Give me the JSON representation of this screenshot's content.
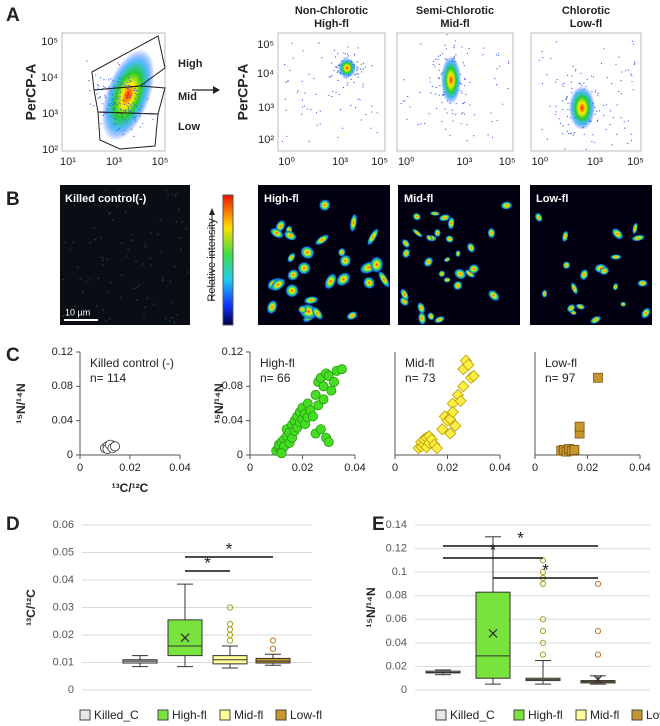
{
  "panel_labels": [
    "A",
    "B",
    "C",
    "D",
    "E"
  ],
  "flow": {
    "gate_plot": {
      "y_label": "PerCP-A",
      "yticks": [
        "10⁵",
        "10⁴",
        "10³",
        "10²"
      ],
      "xticks": [
        "10¹",
        "10³",
        "10⁵"
      ],
      "gates": [
        "High",
        "Mid",
        "Low"
      ]
    },
    "plots": [
      {
        "title": [
          "Non-Chlorotic",
          "High-fl"
        ]
      },
      {
        "title": [
          "Semi-Chlorotic",
          "Mid-fl"
        ]
      },
      {
        "title": [
          "Chlorotic",
          "Low-fl"
        ]
      }
    ],
    "y_label": "PerCP-A",
    "yticks": [
      "10⁵",
      "10⁴",
      "10³",
      "10²"
    ],
    "xticks": [
      "10⁰",
      "10³",
      "10⁵"
    ]
  },
  "images": {
    "labels": [
      "Killed control(-)",
      "High-fl",
      "Mid-fl",
      "Low-fl"
    ],
    "colorbar_label": "Relative intensity",
    "scale_bar": "10 µm"
  },
  "chart_data": [
    {
      "type": "scatter",
      "annotations": [
        "Killed control (-)",
        "n= 114"
      ],
      "marker": "circle",
      "color": "#ffffff",
      "edge_color": "#333333",
      "x": [
        0.01,
        0.011,
        0.012,
        0.013,
        0.011,
        0.012,
        0.013,
        0.014
      ],
      "values": [
        0.008,
        0.01,
        0.009,
        0.011,
        0.007,
        0.012,
        0.008,
        0.01
      ],
      "xlim": [
        0,
        0.04
      ],
      "ylim": [
        0,
        0.12
      ],
      "xticks": [
        0,
        0.02,
        0.04
      ],
      "yticks": [
        0,
        0.04,
        0.08,
        0.12
      ],
      "y_label": "¹⁵N/¹⁴N",
      "x_label": "¹³C/¹²C"
    },
    {
      "type": "scatter",
      "annotations": [
        "High-fl",
        "n= 66"
      ],
      "marker": "circle",
      "color": "#44dd22",
      "edge_color": "#2a9a10",
      "x": [
        0.01,
        0.011,
        0.011,
        0.012,
        0.012,
        0.013,
        0.013,
        0.014,
        0.014,
        0.015,
        0.015,
        0.016,
        0.016,
        0.017,
        0.017,
        0.018,
        0.018,
        0.019,
        0.019,
        0.02,
        0.02,
        0.021,
        0.021,
        0.022,
        0.022,
        0.023,
        0.024,
        0.025,
        0.025,
        0.026,
        0.026,
        0.027,
        0.027,
        0.028,
        0.028,
        0.029,
        0.029,
        0.03,
        0.031,
        0.032,
        0.033,
        0.035,
        0.03,
        0.012
      ],
      "values": [
        0.005,
        0.008,
        0.012,
        0.015,
        0.004,
        0.018,
        0.01,
        0.022,
        0.03,
        0.026,
        0.014,
        0.035,
        0.02,
        0.04,
        0.028,
        0.045,
        0.032,
        0.038,
        0.05,
        0.042,
        0.055,
        0.036,
        0.048,
        0.06,
        0.044,
        0.052,
        0.045,
        0.025,
        0.07,
        0.058,
        0.085,
        0.09,
        0.03,
        0.065,
        0.08,
        0.095,
        0.02,
        0.092,
        0.075,
        0.085,
        0.098,
        0.1,
        0.015,
        0.002
      ],
      "xlim": [
        0,
        0.04
      ],
      "ylim": [
        0,
        0.12
      ],
      "xticks": [
        0,
        0.02,
        0.04
      ],
      "yticks": [
        0,
        0.04,
        0.08,
        0.12
      ],
      "y_label": "¹⁵N/¹⁴N"
    },
    {
      "type": "scatter",
      "annotations": [
        "Mid-fl",
        "n= 73"
      ],
      "marker": "diamond",
      "color": "#ffee44",
      "edge_color": "#b89f00",
      "x": [
        0.009,
        0.01,
        0.01,
        0.011,
        0.011,
        0.012,
        0.012,
        0.013,
        0.013,
        0.014,
        0.015,
        0.016,
        0.018,
        0.019,
        0.02,
        0.021,
        0.021,
        0.022,
        0.022,
        0.023,
        0.024,
        0.025,
        0.026,
        0.026,
        0.027,
        0.028,
        0.029,
        0.03
      ],
      "values": [
        0.008,
        0.01,
        0.015,
        0.012,
        0.018,
        0.02,
        0.009,
        0.014,
        0.022,
        0.018,
        0.012,
        0.008,
        0.03,
        0.045,
        0.04,
        0.025,
        0.042,
        0.06,
        0.05,
        0.034,
        0.07,
        0.063,
        0.08,
        0.1,
        0.11,
        0.105,
        0.09,
        0.092
      ],
      "xlim": [
        0,
        0.04
      ],
      "ylim": [
        0,
        0.12
      ],
      "xticks": [
        0,
        0.02,
        0.04
      ]
    },
    {
      "type": "scatter",
      "annotations": [
        "Low-fl",
        "n= 97"
      ],
      "marker": "square",
      "color": "#c8962e",
      "edge_color": "#7a5510",
      "x": [
        0.01,
        0.011,
        0.012,
        0.013,
        0.014,
        0.015,
        0.017,
        0.017,
        0.024
      ],
      "values": [
        0.005,
        0.006,
        0.004,
        0.007,
        0.005,
        0.006,
        0.025,
        0.033,
        0.09
      ],
      "xlim": [
        0,
        0.04
      ],
      "ylim": [
        0,
        0.12
      ],
      "xticks": [
        0,
        0.02,
        0.04
      ]
    },
    {
      "type": "box",
      "y_label": "¹³C/¹²C",
      "ylim": [
        0,
        0.06
      ],
      "yticks": [
        0,
        0.01,
        0.02,
        0.03,
        0.04,
        0.05,
        0.06
      ],
      "grid": true,
      "annotations": [
        "*",
        "*"
      ],
      "series": [
        {
          "name": "Killed_C",
          "color": "#e6e6e6",
          "min": 0.0085,
          "q1": 0.0098,
          "median": 0.0105,
          "q3": 0.011,
          "max": 0.0125,
          "outliers": []
        },
        {
          "name": "High-fl",
          "color": "#77e33c",
          "min": 0.0085,
          "q1": 0.0125,
          "median": 0.016,
          "q3": 0.0255,
          "max": 0.0385,
          "mean": 0.019,
          "outliers": []
        },
        {
          "name": "Mid-fl",
          "color": "#ffff99",
          "min": 0.008,
          "q1": 0.0095,
          "median": 0.011,
          "q3": 0.0125,
          "max": 0.016,
          "outliers": [
            0.018,
            0.02,
            0.022,
            0.024,
            0.03
          ]
        },
        {
          "name": "Low-fl",
          "color": "#c8962e",
          "min": 0.009,
          "q1": 0.0098,
          "median": 0.0105,
          "q3": 0.0115,
          "max": 0.013,
          "outliers": [
            0.015,
            0.018
          ]
        }
      ]
    },
    {
      "type": "box",
      "y_label": "¹⁵N/¹⁴N",
      "ylim": [
        0,
        0.14
      ],
      "yticks": [
        0,
        0.02,
        0.04,
        0.06,
        0.08,
        0.1,
        0.12,
        0.14
      ],
      "grid": true,
      "annotations": [
        "*",
        "*",
        "*"
      ],
      "series": [
        {
          "name": "Killed_C",
          "color": "#e6e6e6",
          "min": 0.013,
          "q1": 0.0145,
          "median": 0.015,
          "q3": 0.016,
          "max": 0.017,
          "outliers": []
        },
        {
          "name": "High-fl",
          "color": "#77e33c",
          "min": 0.005,
          "q1": 0.01,
          "median": 0.029,
          "q3": 0.083,
          "max": 0.13,
          "mean": 0.048,
          "outliers": []
        },
        {
          "name": "Mid-fl",
          "color": "#ffff99",
          "min": 0.005,
          "q1": 0.008,
          "median": 0.009,
          "q3": 0.01,
          "max": 0.025,
          "outliers": [
            0.03,
            0.04,
            0.05,
            0.06,
            0.09,
            0.095,
            0.1,
            0.11
          ]
        },
        {
          "name": "Low-fl",
          "color": "#c8962e",
          "min": 0.005,
          "q1": 0.006,
          "median": 0.007,
          "q3": 0.008,
          "max": 0.012,
          "mean": 0.009,
          "outliers": [
            0.03,
            0.05,
            0.09
          ]
        }
      ]
    }
  ]
}
